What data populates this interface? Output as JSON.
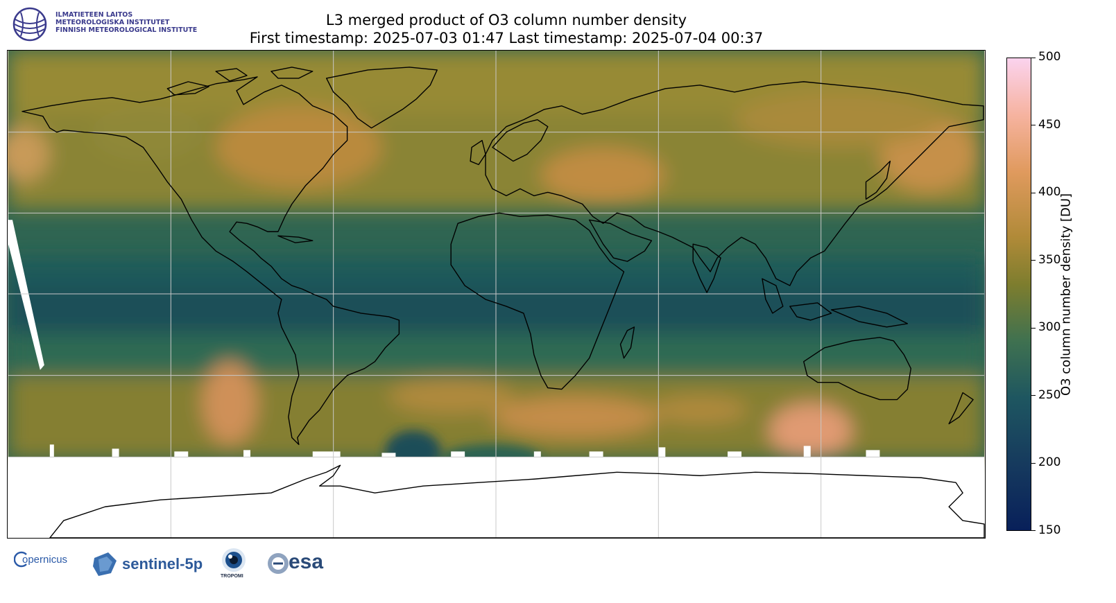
{
  "header": {
    "title_line1": "L3 merged product of O3 column number density",
    "title_line2": "First timestamp: 2025-07-03 01:47   Last timestamp: 2025-07-04 00:37"
  },
  "institute_logo": {
    "lines": [
      "ILMATIETEEN LAITOS",
      "METEOROLOGISKA INSTITUTET",
      "FINNISH METEOROLOGICAL INSTITUTE"
    ],
    "color": "#3a3a8c"
  },
  "colorbar": {
    "label": "O3 column number density [DU]",
    "ticks": [
      "500",
      "450",
      "400",
      "350",
      "300",
      "250",
      "200",
      "150"
    ],
    "min": 150,
    "max": 500
  },
  "footer_logos": {
    "copernicus": "opernicus",
    "sentinel": "sentinel-5p",
    "tropomi": "TROPOMI",
    "esa": "esa"
  },
  "colors": {
    "low": "#08205a",
    "mid_teal": "#1e5660",
    "mid_olive": "#7d7d2e",
    "high": "#e09a5e",
    "max": "#fbd3ee"
  }
}
